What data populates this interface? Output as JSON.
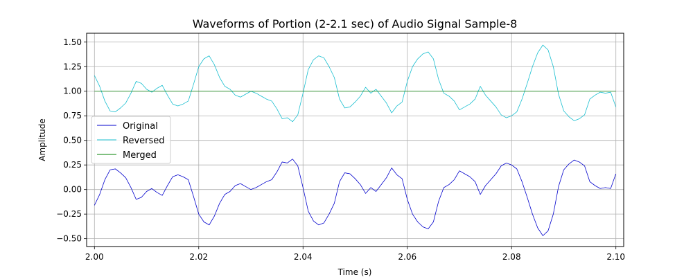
{
  "chart_data": {
    "type": "line",
    "title": "Waveforms of Portion (2-2.1 sec) of Audio Signal Sample-8",
    "xlabel": "Time (s)",
    "ylabel": "Amplitude",
    "xlim": [
      1.9985,
      2.1015
    ],
    "ylim": [
      -0.58,
      1.59
    ],
    "x_ticks": [
      2.0,
      2.02,
      2.04,
      2.06,
      2.08,
      2.1
    ],
    "x_tick_labels": [
      "2.00",
      "2.02",
      "2.04",
      "2.06",
      "2.08",
      "2.10"
    ],
    "y_ticks": [
      -0.5,
      -0.25,
      0.0,
      0.25,
      0.5,
      0.75,
      1.0,
      1.25,
      1.5
    ],
    "y_tick_labels": [
      "−0.50",
      "−0.25",
      "0.00",
      "0.25",
      "0.50",
      "0.75",
      "1.00",
      "1.25",
      "1.50"
    ],
    "grid": true,
    "legend_position": "center-left",
    "series": [
      {
        "name": "Original",
        "color": "#0000cc",
        "x": [
          2.0,
          2.001,
          2.002,
          2.003,
          2.004,
          2.005,
          2.006,
          2.007,
          2.008,
          2.009,
          2.01,
          2.011,
          2.012,
          2.013,
          2.014,
          2.015,
          2.016,
          2.017,
          2.018,
          2.019,
          2.02,
          2.021,
          2.022,
          2.023,
          2.024,
          2.025,
          2.026,
          2.027,
          2.028,
          2.029,
          2.03,
          2.031,
          2.032,
          2.033,
          2.034,
          2.035,
          2.036,
          2.037,
          2.038,
          2.039,
          2.04,
          2.041,
          2.042,
          2.043,
          2.044,
          2.045,
          2.046,
          2.047,
          2.048,
          2.049,
          2.05,
          2.051,
          2.052,
          2.053,
          2.054,
          2.055,
          2.056,
          2.057,
          2.058,
          2.059,
          2.06,
          2.061,
          2.062,
          2.063,
          2.064,
          2.065,
          2.066,
          2.067,
          2.068,
          2.069,
          2.07,
          2.071,
          2.072,
          2.073,
          2.074,
          2.075,
          2.076,
          2.077,
          2.078,
          2.079,
          2.08,
          2.081,
          2.082,
          2.083,
          2.084,
          2.085,
          2.086,
          2.087,
          2.088,
          2.089,
          2.09,
          2.091,
          2.092,
          2.093,
          2.094,
          2.095,
          2.096,
          2.097,
          2.098,
          2.099,
          2.1
        ],
        "y": [
          -0.16,
          -0.05,
          0.1,
          0.2,
          0.21,
          0.17,
          0.12,
          0.02,
          -0.1,
          -0.08,
          -0.02,
          0.01,
          -0.03,
          -0.06,
          0.04,
          0.13,
          0.15,
          0.13,
          0.1,
          -0.07,
          -0.25,
          -0.33,
          -0.36,
          -0.27,
          -0.14,
          -0.05,
          -0.02,
          0.04,
          0.06,
          0.03,
          0.0,
          0.02,
          0.05,
          0.08,
          0.1,
          0.18,
          0.28,
          0.27,
          0.31,
          0.24,
          0.02,
          -0.22,
          -0.32,
          -0.36,
          -0.34,
          -0.25,
          -0.14,
          0.08,
          0.17,
          0.16,
          0.11,
          0.05,
          -0.04,
          0.02,
          -0.02,
          0.05,
          0.12,
          0.22,
          0.15,
          0.11,
          -0.1,
          -0.25,
          -0.33,
          -0.38,
          -0.4,
          -0.33,
          -0.12,
          0.02,
          0.05,
          0.1,
          0.19,
          0.16,
          0.13,
          0.08,
          -0.05,
          0.04,
          0.1,
          0.16,
          0.24,
          0.27,
          0.25,
          0.21,
          0.08,
          -0.08,
          -0.25,
          -0.39,
          -0.47,
          -0.42,
          -0.25,
          0.03,
          0.2,
          0.26,
          0.3,
          0.28,
          0.24,
          0.08,
          0.04,
          0.01,
          0.02,
          0.01,
          0.16
        ]
      },
      {
        "name": "Reversed",
        "color": "#17becf",
        "x": [
          2.0,
          2.001,
          2.002,
          2.003,
          2.004,
          2.005,
          2.006,
          2.007,
          2.008,
          2.009,
          2.01,
          2.011,
          2.012,
          2.013,
          2.014,
          2.015,
          2.016,
          2.017,
          2.018,
          2.019,
          2.02,
          2.021,
          2.022,
          2.023,
          2.024,
          2.025,
          2.026,
          2.027,
          2.028,
          2.029,
          2.03,
          2.031,
          2.032,
          2.033,
          2.034,
          2.035,
          2.036,
          2.037,
          2.038,
          2.039,
          2.04,
          2.041,
          2.042,
          2.043,
          2.044,
          2.045,
          2.046,
          2.047,
          2.048,
          2.049,
          2.05,
          2.051,
          2.052,
          2.053,
          2.054,
          2.055,
          2.056,
          2.057,
          2.058,
          2.059,
          2.06,
          2.061,
          2.062,
          2.063,
          2.064,
          2.065,
          2.066,
          2.067,
          2.068,
          2.069,
          2.07,
          2.071,
          2.072,
          2.073,
          2.074,
          2.075,
          2.076,
          2.077,
          2.078,
          2.079,
          2.08,
          2.081,
          2.082,
          2.083,
          2.084,
          2.085,
          2.086,
          2.087,
          2.088,
          2.089,
          2.09,
          2.091,
          2.092,
          2.093,
          2.094,
          2.095,
          2.096,
          2.097,
          2.098,
          2.099,
          2.1
        ],
        "y": [
          1.16,
          1.05,
          0.9,
          0.8,
          0.79,
          0.83,
          0.88,
          0.98,
          1.1,
          1.08,
          1.02,
          0.99,
          1.03,
          1.06,
          0.96,
          0.87,
          0.85,
          0.87,
          0.9,
          1.07,
          1.25,
          1.33,
          1.36,
          1.27,
          1.14,
          1.05,
          1.02,
          0.96,
          0.94,
          0.97,
          1.0,
          0.98,
          0.95,
          0.92,
          0.9,
          0.82,
          0.72,
          0.73,
          0.69,
          0.76,
          0.98,
          1.22,
          1.32,
          1.36,
          1.34,
          1.25,
          1.14,
          0.92,
          0.83,
          0.84,
          0.89,
          0.95,
          1.04,
          0.98,
          1.02,
          0.95,
          0.88,
          0.78,
          0.85,
          0.89,
          1.1,
          1.25,
          1.33,
          1.38,
          1.4,
          1.33,
          1.12,
          0.98,
          0.95,
          0.9,
          0.81,
          0.84,
          0.87,
          0.92,
          1.05,
          0.96,
          0.9,
          0.84,
          0.76,
          0.73,
          0.75,
          0.79,
          0.92,
          1.08,
          1.25,
          1.39,
          1.47,
          1.42,
          1.25,
          0.97,
          0.8,
          0.74,
          0.7,
          0.72,
          0.76,
          0.92,
          0.96,
          0.99,
          0.98,
          0.99,
          0.84
        ]
      },
      {
        "name": "Merged",
        "color": "#008000",
        "x": [
          2.0,
          2.1
        ],
        "y": [
          1.0,
          1.0
        ]
      }
    ]
  }
}
